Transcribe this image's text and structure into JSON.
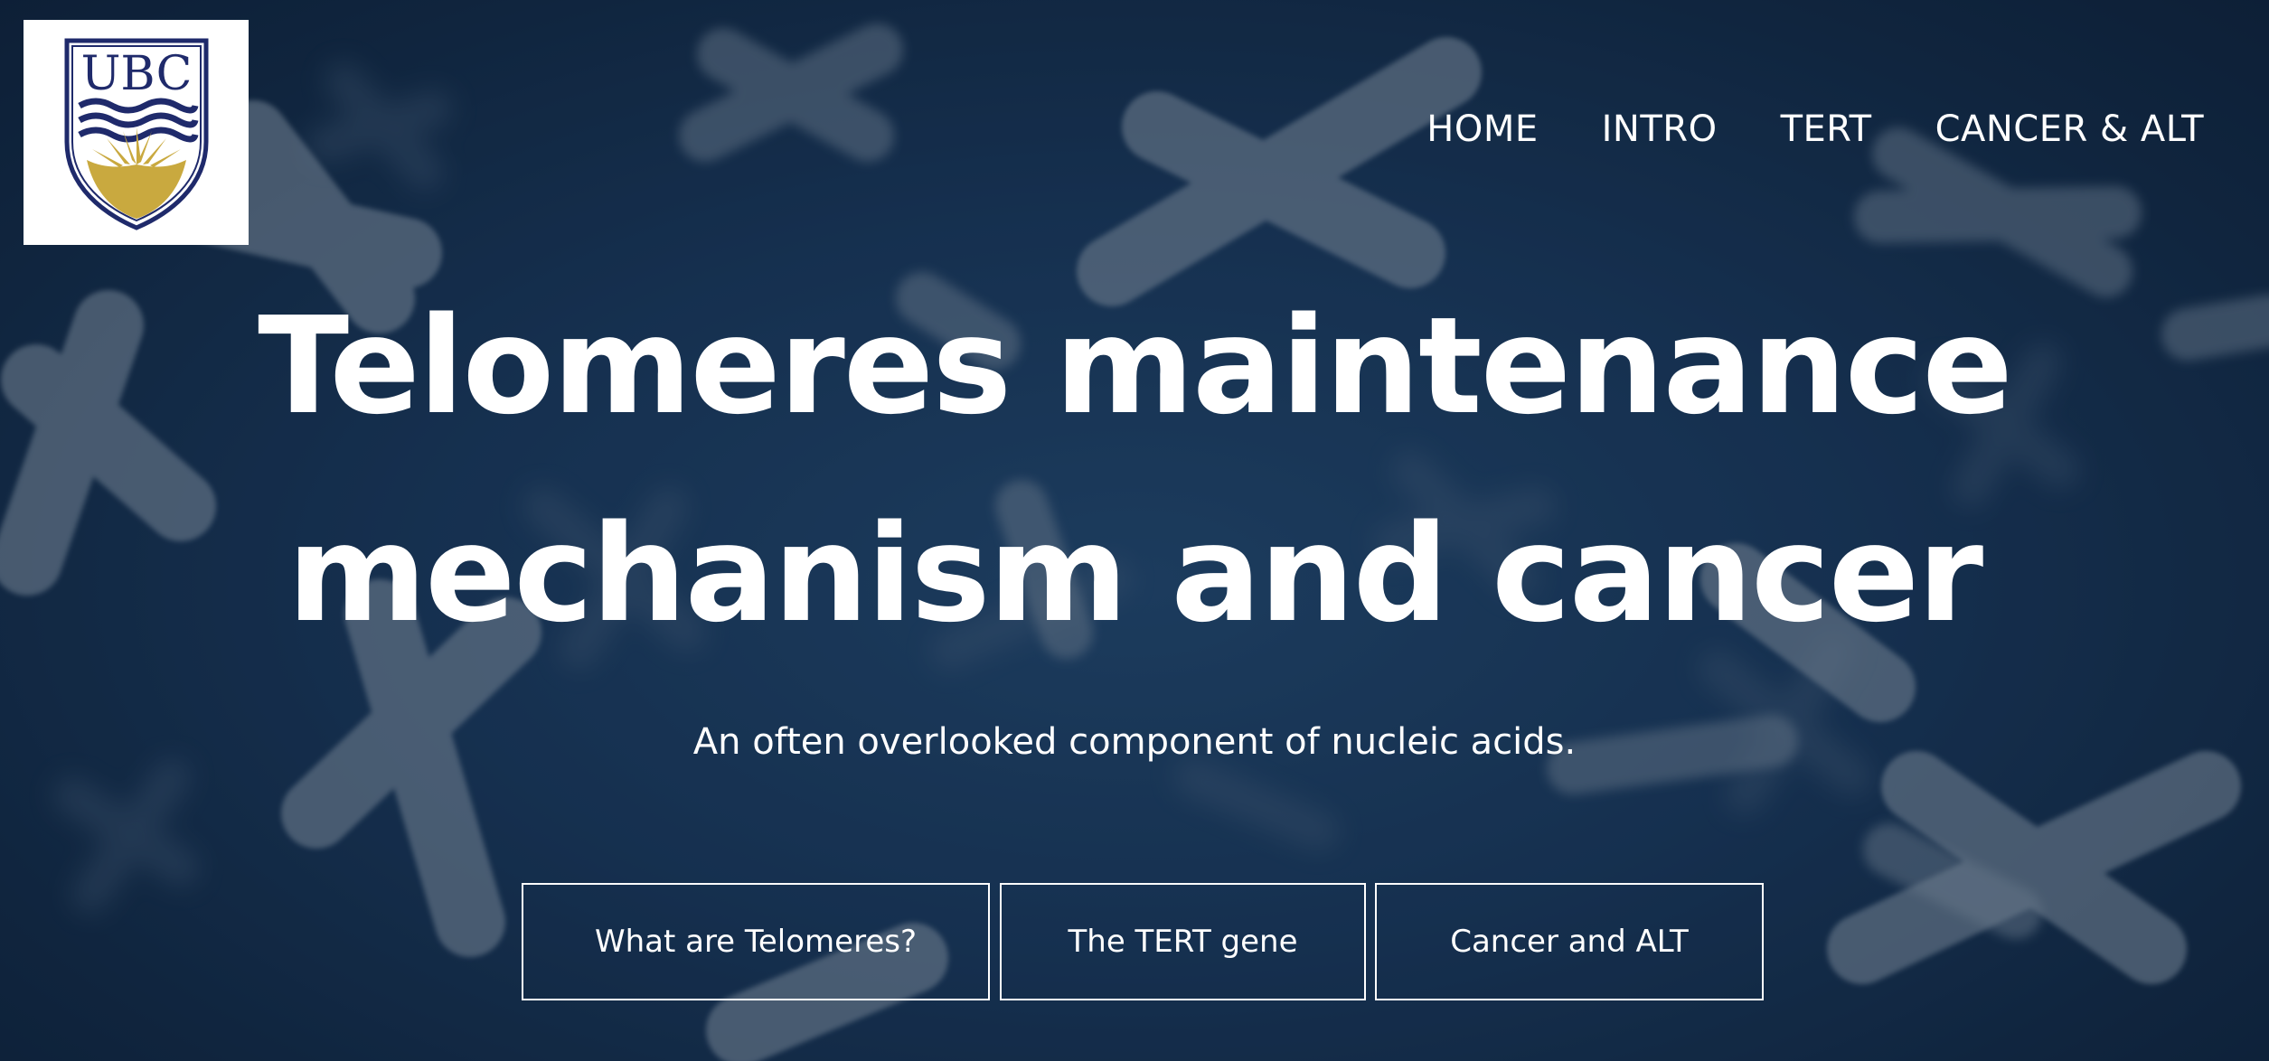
{
  "logo": {
    "text": "UBC",
    "colors": {
      "navy": "#1f2a6b",
      "gold": "#c9a93f"
    }
  },
  "nav": {
    "items": [
      {
        "label": "HOME"
      },
      {
        "label": "INTRO"
      },
      {
        "label": "TERT"
      },
      {
        "label": "CANCER & ALT"
      }
    ]
  },
  "hero": {
    "title_line1": "Telomeres maintenance",
    "title_line2": "mechanism and cancer",
    "subtitle": "An often overlooked component of nucleic acids.",
    "buttons": [
      {
        "label": "What are Telomeres?"
      },
      {
        "label": "The TERT gene"
      },
      {
        "label": "Cancer and ALT"
      }
    ],
    "background_icon": "chromosomes-image"
  },
  "colors": {
    "background": "#1a3658",
    "text": "#ffffff"
  }
}
